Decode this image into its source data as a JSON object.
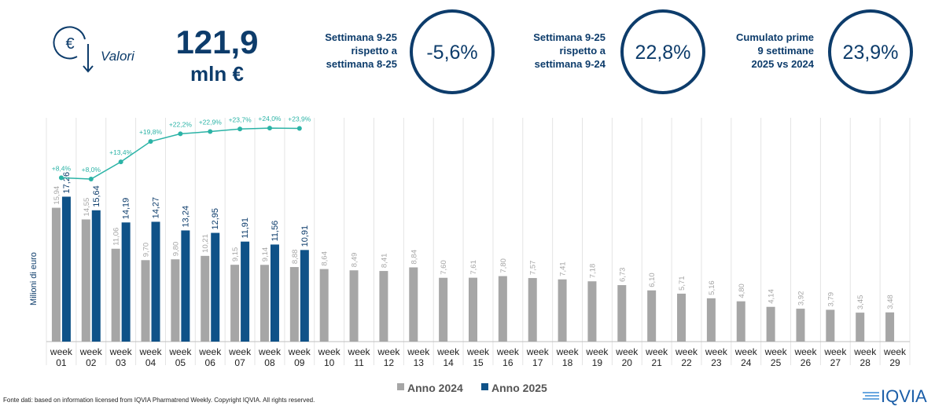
{
  "header": {
    "icon_label": "Valori",
    "total": "121,9",
    "unit": "mln €"
  },
  "kpis": [
    {
      "label": [
        "Settimana 9-25",
        "rispetto a",
        "settimana 8-25"
      ],
      "value": "-5,6%"
    },
    {
      "label": [
        "Settimana 9-25",
        "rispetto a",
        "settimana 9-24"
      ],
      "value": "22,8%"
    },
    {
      "label": [
        "Cumulato prime",
        "9 settimane",
        "2025 vs 2024"
      ],
      "value": "23,9%"
    }
  ],
  "chart_data": {
    "type": "bar",
    "y_label": "Milioni di euro",
    "categories": [
      "week 01",
      "week 02",
      "week 03",
      "week 04",
      "week 05",
      "week 06",
      "week 07",
      "week 08",
      "week 09",
      "week 10",
      "week 11",
      "week 12",
      "week 13",
      "week 14",
      "week 15",
      "week 16",
      "week 17",
      "week 18",
      "week 19",
      "week 20",
      "week 21",
      "week 22",
      "week 23",
      "week 24",
      "week 25",
      "week 26",
      "week 27",
      "week 28",
      "week 29"
    ],
    "ylim": [
      0,
      26
    ],
    "y2lim": [
      -43,
      25.5
    ],
    "series": [
      {
        "name": "Anno 2024",
        "color": "#a6a6a6",
        "values": [
          15.94,
          14.55,
          11.06,
          9.7,
          9.8,
          10.21,
          9.15,
          9.14,
          8.88,
          8.64,
          8.49,
          8.41,
          8.84,
          7.6,
          7.61,
          7.8,
          7.57,
          7.41,
          7.18,
          6.73,
          6.1,
          5.71,
          5.16,
          4.8,
          4.14,
          3.92,
          3.79,
          3.45,
          3.48
        ],
        "value_labels": [
          "15,94",
          "14,55",
          "11,06",
          "9,70",
          "9,80",
          "10,21",
          "9,15",
          "9,14",
          "8,88",
          "8,64",
          "8,49",
          "8,41",
          "8,84",
          "7,60",
          "7,61",
          "7,80",
          "7,57",
          "7,41",
          "7,18",
          "6,73",
          "6,10",
          "5,71",
          "5,16",
          "4,80",
          "4,14",
          "3,92",
          "3,79",
          "3,45",
          "3,48"
        ]
      },
      {
        "name": "Anno 2025",
        "color": "#0f5288",
        "values": [
          17.26,
          15.64,
          14.19,
          14.27,
          13.24,
          12.95,
          11.91,
          11.56,
          10.91,
          null,
          null,
          null,
          null,
          null,
          null,
          null,
          null,
          null,
          null,
          null,
          null,
          null,
          null,
          null,
          null,
          null,
          null,
          null,
          null
        ],
        "value_labels": [
          "17,26",
          "15,64",
          "14,19",
          "14,27",
          "13,24",
          "12,95",
          "11,91",
          "11,56",
          "10,91",
          null,
          null,
          null,
          null,
          null,
          null,
          null,
          null,
          null,
          null,
          null,
          null,
          null,
          null,
          null,
          null,
          null,
          null,
          null,
          null
        ]
      },
      {
        "type": "line",
        "axis": "y2",
        "color": "#2bb3a6",
        "values": [
          8.4,
          8.0,
          13.4,
          19.8,
          22.2,
          22.9,
          23.7,
          24.0,
          23.9,
          null,
          null,
          null,
          null,
          null,
          null,
          null,
          null,
          null,
          null,
          null,
          null,
          null,
          null,
          null,
          null,
          null,
          null,
          null,
          null
        ],
        "value_labels": [
          "+8,4%",
          "+8,0%",
          "+13,4%",
          "+19,8%",
          "+22,2%",
          "+22,9%",
          "+23,7%",
          "+24,0%",
          "+23,9%",
          null,
          null,
          null,
          null,
          null,
          null,
          null,
          null,
          null,
          null,
          null,
          null,
          null,
          null,
          null,
          null,
          null,
          null,
          null,
          null
        ]
      }
    ]
  },
  "footer": {
    "source": "Fonte dati: based on information licensed from IQVIA Pharmatrend Weekly. Copyright IQVIA. All rights reserved.",
    "logo": "IQVIA"
  }
}
